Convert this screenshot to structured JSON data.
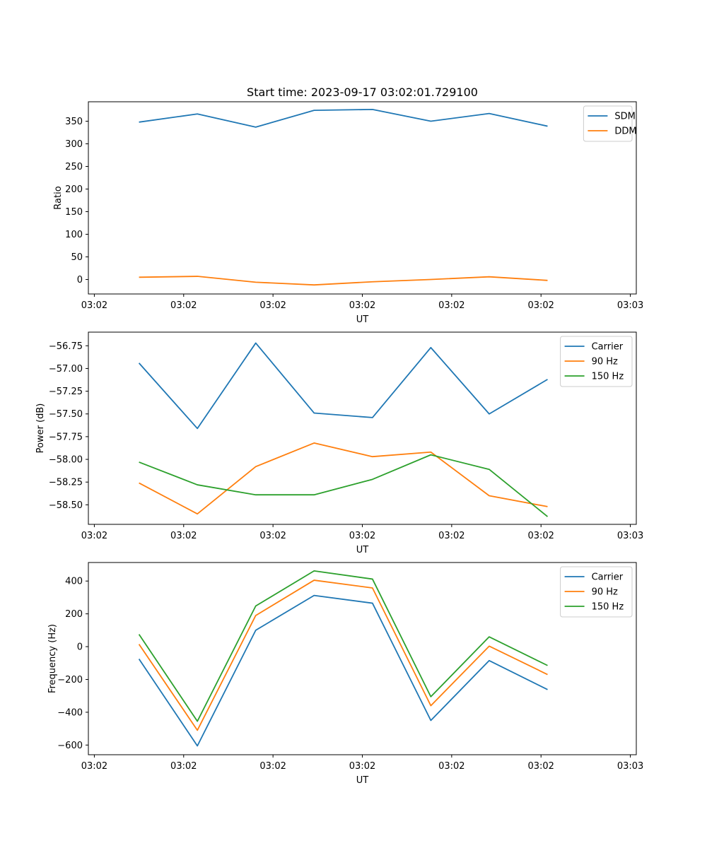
{
  "figure_title": "Start time: 2023-09-17 03:02:01.729100",
  "colors": {
    "blue": "#1f77b4",
    "orange": "#ff7f0e",
    "green": "#2ca02c"
  },
  "chart_data": [
    {
      "type": "line",
      "title": "Start time: 2023-09-17 03:02:01.729100",
      "xlabel": "UT",
      "ylabel": "Ratio",
      "xlim": [
        -0.1,
        9.1
      ],
      "ylim": [
        -32,
        393
      ],
      "x_ticks": [
        0,
        1.5,
        3,
        4.5,
        6,
        7.5,
        9
      ],
      "x_tick_labels": [
        "03:02",
        "03:02",
        "03:02",
        "03:02",
        "03:02",
        "03:02",
        "03:03"
      ],
      "y_ticks": [
        0,
        50,
        100,
        150,
        200,
        250,
        300,
        350
      ],
      "y_tick_labels": [
        "0",
        "50",
        "100",
        "150",
        "200",
        "250",
        "300",
        "350"
      ],
      "x": [
        0.75,
        1.73,
        2.71,
        3.69,
        4.67,
        5.65,
        6.63,
        7.61
      ],
      "series": [
        {
          "name": "SDM",
          "color": "#1f77b4",
          "values": [
            348,
            366,
            337,
            374,
            376,
            350,
            367,
            339
          ]
        },
        {
          "name": "DDM",
          "color": "#ff7f0e",
          "values": [
            5,
            7,
            -6,
            -12,
            -5,
            0,
            6,
            -2
          ]
        }
      ],
      "legend": [
        "SDM",
        "DDM"
      ],
      "legend_position": "top-right"
    },
    {
      "type": "line",
      "title": "",
      "xlabel": "UT",
      "ylabel": "Power (dB)",
      "xlim": [
        -0.1,
        9.1
      ],
      "ylim": [
        -58.715,
        -56.6
      ],
      "x_ticks": [
        0,
        1.5,
        3,
        4.5,
        6,
        7.5,
        9
      ],
      "x_tick_labels": [
        "03:02",
        "03:02",
        "03:02",
        "03:02",
        "03:02",
        "03:02",
        "03:03"
      ],
      "y_ticks": [
        -56.75,
        -57.0,
        -57.25,
        -57.5,
        -57.75,
        -58.0,
        -58.25,
        -58.5
      ],
      "y_tick_labels": [
        "−56.75",
        "−57.00",
        "−57.25",
        "−57.50",
        "−57.75",
        "−58.00",
        "−58.25",
        "−58.50"
      ],
      "x": [
        0.75,
        1.73,
        2.71,
        3.69,
        4.67,
        5.65,
        6.63,
        7.61
      ],
      "series": [
        {
          "name": "Carrier",
          "color": "#1f77b4",
          "values": [
            -56.94,
            -57.66,
            -56.72,
            -57.49,
            -57.54,
            -56.77,
            -57.5,
            -57.12
          ]
        },
        {
          "name": "90 Hz",
          "color": "#ff7f0e",
          "values": [
            -58.26,
            -58.6,
            -58.08,
            -57.82,
            -57.97,
            -57.92,
            -58.4,
            -58.52
          ]
        },
        {
          "name": "150 Hz",
          "color": "#2ca02c",
          "values": [
            -58.03,
            -58.28,
            -58.39,
            -58.39,
            -58.22,
            -57.95,
            -58.11,
            -58.63
          ]
        }
      ],
      "legend": [
        "Carrier",
        "90 Hz",
        "150 Hz"
      ],
      "legend_position": "top-right"
    },
    {
      "type": "line",
      "title": "",
      "xlabel": "UT",
      "ylabel": "Frequency (Hz)",
      "xlim": [
        -0.1,
        9.1
      ],
      "ylim": [
        -659,
        513
      ],
      "x_ticks": [
        0,
        1.5,
        3,
        4.5,
        6,
        7.5,
        9
      ],
      "x_tick_labels": [
        "03:02",
        "03:02",
        "03:02",
        "03:02",
        "03:02",
        "03:02",
        "03:03"
      ],
      "y_ticks": [
        -600,
        -400,
        -200,
        0,
        200,
        400
      ],
      "y_tick_labels": [
        "−600",
        "−400",
        "−200",
        "0",
        "200",
        "400"
      ],
      "x": [
        0.75,
        1.73,
        2.71,
        3.69,
        4.67,
        5.65,
        6.63,
        7.61
      ],
      "series": [
        {
          "name": "Carrier",
          "color": "#1f77b4",
          "values": [
            -75,
            -605,
            100,
            312,
            265,
            -450,
            -85,
            -262
          ]
        },
        {
          "name": "90 Hz",
          "color": "#ff7f0e",
          "values": [
            15,
            -510,
            190,
            405,
            358,
            -360,
            3,
            -170
          ]
        },
        {
          "name": "150 Hz",
          "color": "#2ca02c",
          "values": [
            75,
            -455,
            248,
            462,
            412,
            -305,
            60,
            -115
          ]
        }
      ],
      "legend": [
        "Carrier",
        "90 Hz",
        "150 Hz"
      ],
      "legend_position": "top-right"
    }
  ]
}
